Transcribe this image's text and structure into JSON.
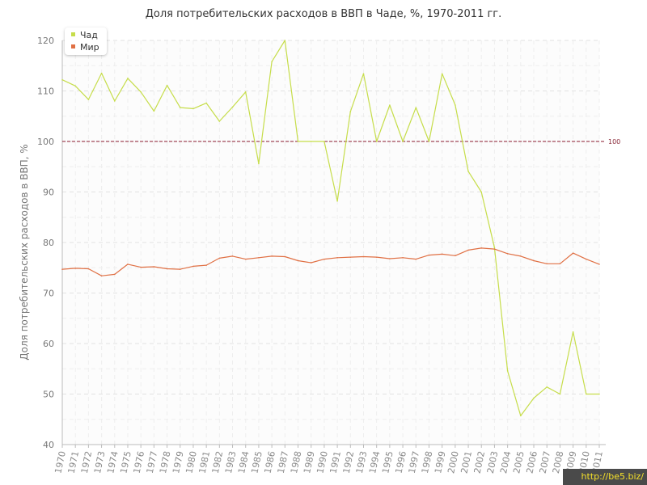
{
  "chart_data": {
    "type": "line",
    "title": "Доля потребительских расходов в ВВП в Чаде, %, 1970-2011 гг.",
    "ylabel": "Доля потребительских расходов в ВВП, %",
    "xlabel": "",
    "ylim": [
      40,
      120
    ],
    "yticks": [
      "40",
      "50",
      "60",
      "70",
      "80",
      "90",
      "100",
      "110",
      "120"
    ],
    "grid": true,
    "legend_position": "top-left",
    "x": [
      "1970",
      "1971",
      "1972",
      "1973",
      "1974",
      "1975",
      "1976",
      "1977",
      "1978",
      "1979",
      "1980",
      "1981",
      "1982",
      "1983",
      "1984",
      "1985",
      "1986",
      "1987",
      "1988",
      "1989",
      "1990",
      "1991",
      "1992",
      "1993",
      "1994",
      "1995",
      "1996",
      "1997",
      "1998",
      "1999",
      "2000",
      "2001",
      "2002",
      "2003",
      "2004",
      "2005",
      "2006",
      "2007",
      "2008",
      "2009",
      "2010",
      "2011"
    ],
    "series": [
      {
        "name": "Чад",
        "color": "#c6dd4a",
        "values": [
          112.2,
          111.0,
          108.3,
          113.5,
          108.0,
          112.5,
          109.8,
          106.0,
          111.1,
          106.7,
          106.5,
          107.6,
          104.0,
          106.8,
          109.8,
          95.6,
          115.8,
          120.0,
          100.0,
          100.0,
          100.0,
          88.2,
          105.9,
          113.4,
          100.0,
          107.2,
          100.0,
          106.7,
          100.0,
          113.4,
          107.2,
          94.1,
          90.0,
          79.0,
          54.6,
          45.7,
          49.2,
          51.4,
          50.0,
          62.3,
          50.0,
          50.0
        ]
      },
      {
        "name": "Мир",
        "color": "#e07044",
        "values": [
          74.7,
          74.9,
          74.8,
          73.4,
          73.7,
          75.7,
          75.1,
          75.2,
          74.8,
          74.7,
          75.3,
          75.5,
          76.9,
          77.3,
          76.7,
          77.0,
          77.3,
          77.2,
          76.4,
          76.0,
          76.7,
          77.0,
          77.1,
          77.2,
          77.1,
          76.8,
          77.0,
          76.7,
          77.5,
          77.7,
          77.4,
          78.5,
          78.9,
          78.7,
          77.8,
          77.3,
          76.4,
          75.8,
          75.8,
          77.9,
          76.7,
          75.7
        ]
      }
    ],
    "reference_line": {
      "value": 100,
      "label": "100",
      "color": "#8a1a2e"
    }
  },
  "watermark": "http://be5.biz/"
}
